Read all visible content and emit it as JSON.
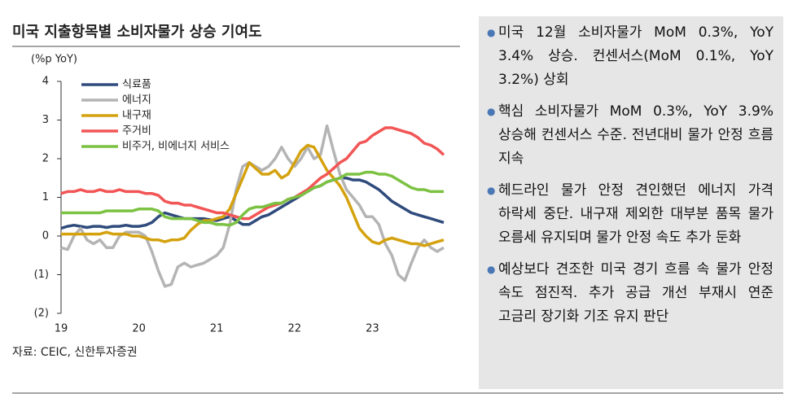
{
  "chart_data": {
    "type": "line",
    "title": "미국 지출항목별 소비자물가 상승 기여도",
    "y_label": "(%p YoY)",
    "source": "자료: CEIC, 신한투자증권",
    "categories": [
      "19",
      null,
      null,
      null,
      null,
      null,
      null,
      null,
      null,
      null,
      null,
      null,
      "20",
      null,
      null,
      null,
      null,
      null,
      null,
      null,
      null,
      null,
      null,
      null,
      "21",
      null,
      null,
      null,
      null,
      null,
      null,
      null,
      null,
      null,
      null,
      null,
      "22",
      null,
      null,
      null,
      null,
      null,
      null,
      null,
      null,
      null,
      null,
      null,
      "23",
      null,
      null,
      null,
      null,
      null,
      null,
      null,
      null,
      null,
      null,
      null
    ],
    "ylim": [
      -2,
      4
    ],
    "yticks": [
      {
        "value": -2,
        "label": "(2)"
      },
      {
        "value": -1,
        "label": "(1)"
      },
      0,
      1,
      2,
      3,
      4
    ],
    "series": [
      {
        "name": "식료품",
        "color": "#2f4b7c",
        "values": [
          0.2,
          0.25,
          0.28,
          0.25,
          0.22,
          0.25,
          0.25,
          0.22,
          0.25,
          0.25,
          0.28,
          0.25,
          0.25,
          0.28,
          0.35,
          0.5,
          0.6,
          0.55,
          0.5,
          0.45,
          0.45,
          0.45,
          0.45,
          0.42,
          0.4,
          0.45,
          0.5,
          0.4,
          0.3,
          0.3,
          0.4,
          0.5,
          0.55,
          0.65,
          0.75,
          0.85,
          0.95,
          1.05,
          1.15,
          1.25,
          1.3,
          1.4,
          1.45,
          1.5,
          1.5,
          1.45,
          1.45,
          1.4,
          1.3,
          1.2,
          1.05,
          0.9,
          0.8,
          0.7,
          0.6,
          0.55,
          0.5,
          0.45,
          0.4,
          0.35
        ]
      },
      {
        "name": "에너지",
        "color": "#b4b4b4",
        "values": [
          -0.3,
          -0.35,
          0,
          0.2,
          -0.1,
          -0.2,
          -0.1,
          -0.3,
          -0.3,
          0,
          0.1,
          0.1,
          0.1,
          0,
          -0.4,
          -0.9,
          -1.3,
          -1.25,
          -0.8,
          -0.7,
          -0.8,
          -0.75,
          -0.7,
          -0.6,
          -0.5,
          -0.3,
          0.3,
          1.2,
          1.8,
          1.9,
          1.8,
          1.7,
          1.8,
          2.0,
          2.3,
          2.0,
          1.8,
          2.0,
          2.3,
          2.0,
          2.1,
          2.85,
          2.2,
          1.6,
          1.2,
          1.0,
          0.8,
          0.5,
          0.5,
          0.3,
          -0.2,
          -0.5,
          -1.0,
          -1.15,
          -0.7,
          -0.3,
          -0.1,
          -0.3,
          -0.4,
          -0.3
        ]
      },
      {
        "name": "내구재",
        "color": "#d4a20f",
        "values": [
          0.05,
          0.05,
          0.05,
          0.05,
          0.05,
          0.05,
          0.05,
          0.1,
          0.05,
          0.05,
          0.05,
          0,
          0,
          -0.05,
          -0.1,
          -0.1,
          -0.15,
          -0.1,
          -0.1,
          -0.05,
          0.15,
          0.3,
          0.4,
          0.4,
          0.45,
          0.5,
          0.7,
          1.1,
          1.5,
          1.9,
          1.75,
          1.6,
          1.6,
          1.7,
          1.5,
          1.6,
          1.9,
          2.2,
          2.35,
          2.3,
          2.0,
          1.7,
          1.5,
          1.3,
          1.0,
          0.6,
          0.2,
          0,
          -0.15,
          -0.2,
          -0.1,
          -0.05,
          -0.1,
          -0.15,
          -0.2,
          -0.2,
          -0.25,
          -0.2,
          -0.15,
          -0.1
        ]
      },
      {
        "name": "주거비",
        "color": "#f25555",
        "values": [
          1.1,
          1.15,
          1.15,
          1.2,
          1.15,
          1.15,
          1.2,
          1.15,
          1.15,
          1.2,
          1.15,
          1.15,
          1.15,
          1.1,
          1.1,
          1.05,
          0.9,
          0.85,
          0.85,
          0.8,
          0.8,
          0.75,
          0.7,
          0.65,
          0.6,
          0.6,
          0.55,
          0.5,
          0.45,
          0.45,
          0.55,
          0.65,
          0.75,
          0.8,
          0.85,
          0.95,
          1.0,
          1.1,
          1.2,
          1.35,
          1.5,
          1.6,
          1.75,
          1.9,
          2.0,
          2.2,
          2.4,
          2.45,
          2.6,
          2.7,
          2.8,
          2.8,
          2.75,
          2.7,
          2.65,
          2.55,
          2.4,
          2.35,
          2.25,
          2.1
        ]
      },
      {
        "name": "비주거, 비에너지 서비스",
        "color": "#7cc242",
        "values": [
          0.6,
          0.6,
          0.6,
          0.6,
          0.6,
          0.6,
          0.6,
          0.65,
          0.65,
          0.65,
          0.65,
          0.65,
          0.7,
          0.7,
          0.7,
          0.65,
          0.5,
          0.45,
          0.45,
          0.45,
          0.45,
          0.4,
          0.35,
          0.35,
          0.3,
          0.3,
          0.28,
          0.35,
          0.55,
          0.7,
          0.75,
          0.75,
          0.8,
          0.85,
          0.85,
          0.95,
          1.0,
          1.05,
          1.15,
          1.25,
          1.3,
          1.4,
          1.45,
          1.5,
          1.6,
          1.6,
          1.6,
          1.65,
          1.65,
          1.6,
          1.6,
          1.55,
          1.45,
          1.35,
          1.25,
          1.2,
          1.2,
          1.15,
          1.15,
          1.15
        ]
      }
    ]
  },
  "panel": {
    "bullets": [
      "미국 12월 소비자물가 MoM 0.3%, YoY 3.4% 상승. 컨센서스(MoM 0.1%, YoY 3.2%) 상회",
      "핵심 소비자물가 MoM 0.3%, YoY 3.9% 상승해 컨센서스 수준. 전년대비 물가 안정 흐름 지속",
      "헤드라인 물가 안정 견인했던 에너지 가격 하락세 중단. 내구재 제외한 대부분 품목 물가 오름세 유지되며 물가 안정 속도 추가 둔화",
      "예상보다 견조한 미국 경기 흐름 속 물가 안정 속도 점진적. 추가 공급 개선 부재시 연준 고금리 장기화 기조 유지 판단"
    ]
  }
}
